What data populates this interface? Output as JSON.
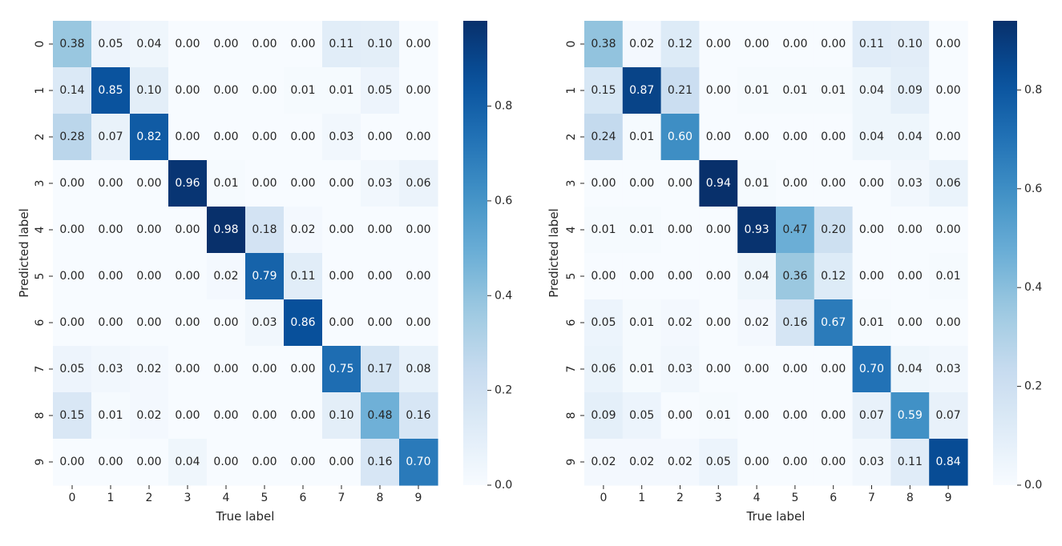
{
  "chart_data": [
    {
      "type": "heatmap",
      "xlabel": "True label",
      "ylabel": "Predicted label",
      "x_categories": [
        "0",
        "1",
        "2",
        "3",
        "4",
        "5",
        "6",
        "7",
        "8",
        "9"
      ],
      "y_categories": [
        "0",
        "1",
        "2",
        "3",
        "4",
        "5",
        "6",
        "7",
        "8",
        "9"
      ],
      "colormap": "Blues",
      "vmin": 0.0,
      "vmax": 0.98,
      "colorbar_ticks": [
        "0.0",
        "0.2",
        "0.4",
        "0.6",
        "0.8"
      ],
      "values": [
        [
          0.38,
          0.05,
          0.04,
          0.0,
          0.0,
          0.0,
          0.0,
          0.11,
          0.1,
          0.0
        ],
        [
          0.14,
          0.85,
          0.1,
          0.0,
          0.0,
          0.0,
          0.01,
          0.01,
          0.05,
          0.0
        ],
        [
          0.28,
          0.07,
          0.82,
          0.0,
          0.0,
          0.0,
          0.0,
          0.03,
          0.0,
          0.0
        ],
        [
          0.0,
          0.0,
          0.0,
          0.96,
          0.01,
          0.0,
          0.0,
          0.0,
          0.03,
          0.06
        ],
        [
          0.0,
          0.0,
          0.0,
          0.0,
          0.98,
          0.18,
          0.02,
          0.0,
          0.0,
          0.0
        ],
        [
          0.0,
          0.0,
          0.0,
          0.0,
          0.02,
          0.79,
          0.11,
          0.0,
          0.0,
          0.0
        ],
        [
          0.0,
          0.0,
          0.0,
          0.0,
          0.0,
          0.03,
          0.86,
          0.0,
          0.0,
          0.0
        ],
        [
          0.05,
          0.03,
          0.02,
          0.0,
          0.0,
          0.0,
          0.0,
          0.75,
          0.17,
          0.08
        ],
        [
          0.15,
          0.01,
          0.02,
          0.0,
          0.0,
          0.0,
          0.0,
          0.1,
          0.48,
          0.16
        ],
        [
          0.0,
          0.0,
          0.0,
          0.04,
          0.0,
          0.0,
          0.0,
          0.0,
          0.16,
          0.7
        ]
      ]
    },
    {
      "type": "heatmap",
      "xlabel": "True label",
      "ylabel": "Predicted label",
      "x_categories": [
        "0",
        "1",
        "2",
        "3",
        "4",
        "5",
        "6",
        "7",
        "8",
        "9"
      ],
      "y_categories": [
        "0",
        "1",
        "2",
        "3",
        "4",
        "5",
        "6",
        "7",
        "8",
        "9"
      ],
      "colormap": "Blues",
      "vmin": 0.0,
      "vmax": 0.94,
      "colorbar_ticks": [
        "0.0",
        "0.2",
        "0.4",
        "0.6",
        "0.8"
      ],
      "values": [
        [
          0.38,
          0.02,
          0.12,
          0.0,
          0.0,
          0.0,
          0.0,
          0.11,
          0.1,
          0.0
        ],
        [
          0.15,
          0.87,
          0.21,
          0.0,
          0.01,
          0.01,
          0.01,
          0.04,
          0.09,
          0.0
        ],
        [
          0.24,
          0.01,
          0.6,
          0.0,
          0.0,
          0.0,
          0.0,
          0.04,
          0.04,
          0.0
        ],
        [
          0.0,
          0.0,
          0.0,
          0.94,
          0.01,
          0.0,
          0.0,
          0.0,
          0.03,
          0.06
        ],
        [
          0.01,
          0.01,
          0.0,
          0.0,
          0.93,
          0.47,
          0.2,
          0.0,
          0.0,
          0.0
        ],
        [
          0.0,
          0.0,
          0.0,
          0.0,
          0.04,
          0.36,
          0.12,
          0.0,
          0.0,
          0.01
        ],
        [
          0.05,
          0.01,
          0.02,
          0.0,
          0.02,
          0.16,
          0.67,
          0.01,
          0.0,
          0.0
        ],
        [
          0.06,
          0.01,
          0.03,
          0.0,
          0.0,
          0.0,
          0.0,
          0.7,
          0.04,
          0.03
        ],
        [
          0.09,
          0.05,
          0.0,
          0.01,
          0.0,
          0.0,
          0.0,
          0.07,
          0.59,
          0.07
        ],
        [
          0.02,
          0.02,
          0.02,
          0.05,
          0.0,
          0.0,
          0.0,
          0.03,
          0.11,
          0.84
        ]
      ]
    }
  ]
}
